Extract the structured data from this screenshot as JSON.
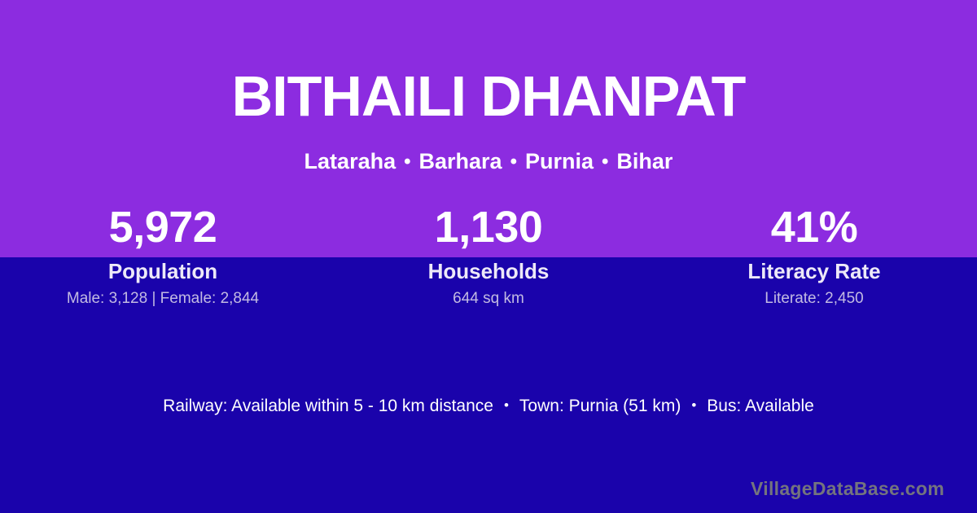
{
  "header": {
    "title": "BITHAILI DHANPAT",
    "breadcrumb": [
      "Lataraha",
      "Barhara",
      "Purnia",
      "Bihar"
    ],
    "separator": "•"
  },
  "stats": [
    {
      "value": "5,972",
      "label": "Population",
      "detail": "Male: 3,128 | Female: 2,844"
    },
    {
      "value": "1,130",
      "label": "Households",
      "detail": "644 sq km"
    },
    {
      "value": "41%",
      "label": "Literacy Rate",
      "detail": "Literate: 2,450"
    }
  ],
  "info": {
    "parts": [
      "Railway: Available within 5 - 10 km distance",
      "Town: Purnia (51 km)",
      "Bus: Available"
    ],
    "separator": "•"
  },
  "watermark": "VillageDataBase.com",
  "colors": {
    "top_bg": "#8C2CE0",
    "bottom_bg": "#1A03AB",
    "heading_text": "#FFFFFF",
    "label_text": "#EDE9F8",
    "detail_text": "#C2BAE2",
    "watermark_text": "#74747E"
  }
}
